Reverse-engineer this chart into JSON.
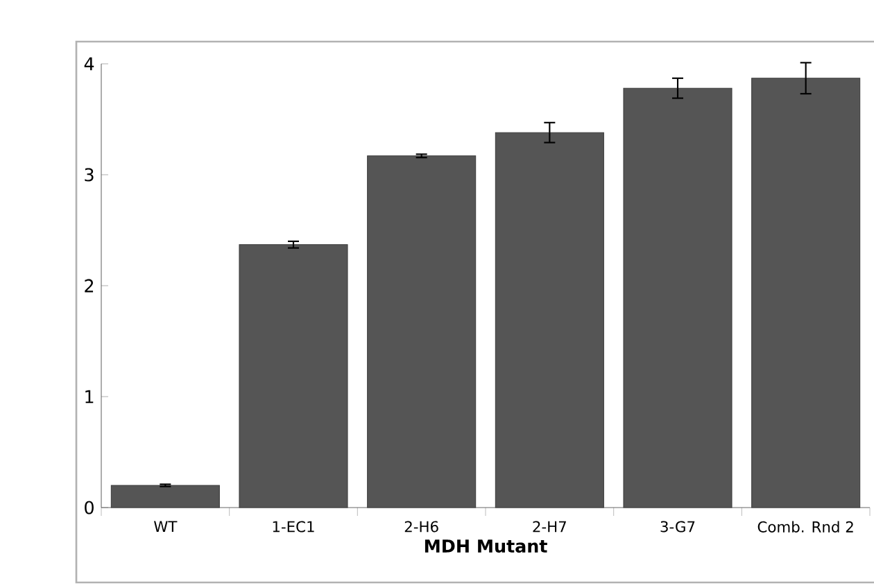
{
  "chart_data": {
    "type": "bar",
    "xlabel": "MDH Mutant",
    "categories": [
      "WT",
      "1-EC1",
      "2-H6",
      "2-H7",
      "3-G7",
      "Comb. Rnd 2"
    ],
    "values": [
      0.2,
      2.37,
      3.17,
      3.38,
      3.78,
      3.87
    ],
    "errors": [
      0.01,
      0.03,
      0.015,
      0.09,
      0.09,
      0.14
    ],
    "color": "#555555",
    "ylim": [
      0,
      4
    ],
    "yticks": [
      0,
      1,
      2,
      3,
      4
    ],
    "grid": false
  }
}
